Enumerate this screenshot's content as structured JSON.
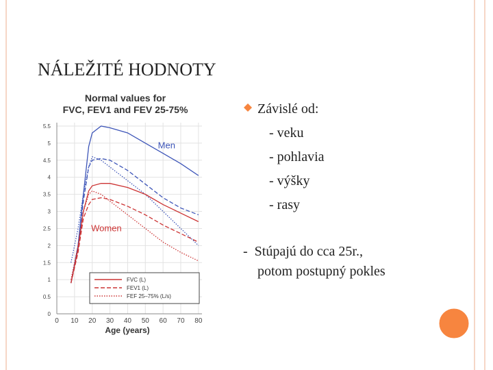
{
  "slide": {
    "title": "NÁLEŽITÉ HODNOTY",
    "bullet": "Závislé od:",
    "sub_items": [
      "- veku",
      "- pohlavia",
      "- výšky",
      " - rasy"
    ],
    "note": [
      "-  Stúpajú do cca 25r.,",
      "potom postupný pokles"
    ]
  },
  "chart_data": {
    "type": "line",
    "title": [
      "Normal values for",
      "FVC, FEV1 and FEV 25-75%"
    ],
    "x_label": "Age (years)",
    "x": [
      8,
      12,
      15,
      18,
      20,
      25,
      30,
      40,
      50,
      60,
      70,
      80
    ],
    "groups": [
      {
        "label": "Men",
        "color": "#3d55b8",
        "lines": [
          [
            0.9,
            2.0,
            3.5,
            4.9,
            5.3,
            5.5,
            5.45,
            5.3,
            5.0,
            4.7,
            4.4,
            4.05
          ],
          [
            0.9,
            2.0,
            3.3,
            4.3,
            4.5,
            4.55,
            4.5,
            4.2,
            3.8,
            3.4,
            3.1,
            2.9
          ],
          [
            1.5,
            2.5,
            3.5,
            4.3,
            4.6,
            4.5,
            4.3,
            3.9,
            3.5,
            3.0,
            2.5,
            2.0
          ]
        ]
      },
      {
        "label": "Women",
        "color": "#cc3333",
        "lines": [
          [
            0.9,
            1.9,
            3.0,
            3.6,
            3.75,
            3.82,
            3.82,
            3.7,
            3.5,
            3.2,
            2.95,
            2.7
          ],
          [
            0.9,
            1.8,
            2.8,
            3.2,
            3.35,
            3.4,
            3.35,
            3.15,
            2.9,
            2.6,
            2.35,
            2.1
          ],
          [
            1.0,
            2.0,
            3.0,
            3.5,
            3.6,
            3.5,
            3.3,
            2.9,
            2.5,
            2.1,
            1.8,
            1.55
          ]
        ]
      }
    ],
    "legend": [
      {
        "label": "FVC (L)",
        "dash": "solid"
      },
      {
        "label": "FEV1 (L)",
        "dash": "dashed"
      },
      {
        "label": "FEF 25–75% (L/s)",
        "dash": "dotted"
      }
    ],
    "xlim": [
      0,
      82
    ],
    "xticks": [
      0,
      10,
      20,
      30,
      40,
      50,
      60,
      70,
      80
    ],
    "ylim": [
      0,
      5.6
    ],
    "yticks": [
      0,
      0.5,
      1,
      1.5,
      2,
      2.5,
      3,
      3.5,
      4,
      4.5,
      5,
      5.5
    ],
    "grid": true
  }
}
